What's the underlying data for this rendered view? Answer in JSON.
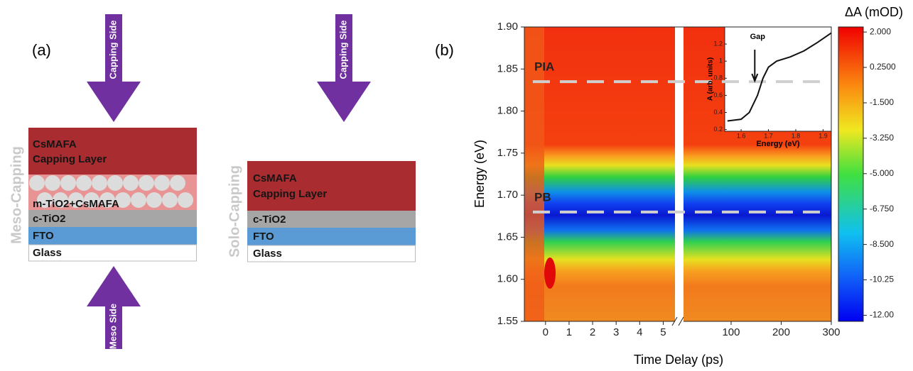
{
  "panel_a": {
    "label": "(a)",
    "top_arrow": "Capping Side",
    "bottom_arrow": "Meso Side",
    "meso_stack": {
      "name": "Meso-Capping",
      "layers": [
        [
          "CsMAFA",
          "Capping Layer"
        ],
        "m-TiO2+CsMAFA",
        "c-TiO2",
        "FTO",
        "Glass"
      ]
    },
    "solo_stack": {
      "name": "Solo-Capping",
      "arrow": "Capping Side",
      "layers": [
        [
          "CsMAFA",
          "Capping Layer"
        ],
        "c-TiO2",
        "FTO",
        "Glass"
      ]
    }
  },
  "chart_data": {
    "type": "heatmap",
    "label": "(b)",
    "xlabel": "Time Delay (ps)",
    "ylabel": "Energy (eV)",
    "colorbar_label": "ΔA (mOD)",
    "xlim": [
      -0.9,
      5.5
    ],
    "xticks": [
      0,
      1,
      2,
      3,
      4,
      5
    ],
    "x2lim": [
      5,
      300
    ],
    "x2ticks": [
      100,
      200,
      300
    ],
    "ylim": [
      1.55,
      1.9
    ],
    "yticks": [
      {
        "value": 1.9,
        "label": "1.90"
      },
      1.85,
      {
        "value": 1.8,
        "label": "1.80"
      },
      1.75,
      {
        "value": 1.7,
        "label": "1.70"
      },
      1.65,
      {
        "value": 1.6,
        "label": "1.60"
      },
      1.55
    ],
    "clim": [
      -12.3,
      2.25
    ],
    "cticks": [
      {
        "value": 2,
        "label": "2.000"
      },
      {
        "value": 0.25,
        "label": "0.2500"
      },
      {
        "value": -1.5,
        "label": "-1.500"
      },
      {
        "value": -3.25,
        "label": "-3.250"
      },
      {
        "value": -5,
        "label": "-5.000"
      },
      {
        "value": -6.75,
        "label": "-6.750"
      },
      {
        "value": -8.5,
        "label": "-8.500"
      },
      -10.25,
      {
        "value": -12,
        "label": "-12.00"
      }
    ],
    "annotations": [
      {
        "label": "PIA",
        "y": 1.835
      },
      {
        "label": "PB",
        "y": 1.68
      }
    ],
    "inset": {
      "xlabel": "Energy (eV)",
      "ylabel": "A (arb. units)",
      "annotation": "Gap",
      "gap_energy": 1.65,
      "xlim": [
        1.54,
        1.93
      ],
      "ylim": [
        0.18,
        1.4
      ],
      "xticks": [
        1.6,
        1.7,
        1.8,
        1.9
      ],
      "yticks": [
        0.2,
        0.4,
        0.6,
        0.8,
        1,
        1.2
      ],
      "x": [
        1.55,
        1.6,
        1.63,
        1.66,
        1.68,
        1.7,
        1.73,
        1.78,
        1.83,
        1.88,
        1.93
      ],
      "values": [
        0.3,
        0.32,
        0.4,
        0.6,
        0.8,
        0.93,
        1.0,
        1.05,
        1.12,
        1.22,
        1.33
      ]
    }
  }
}
